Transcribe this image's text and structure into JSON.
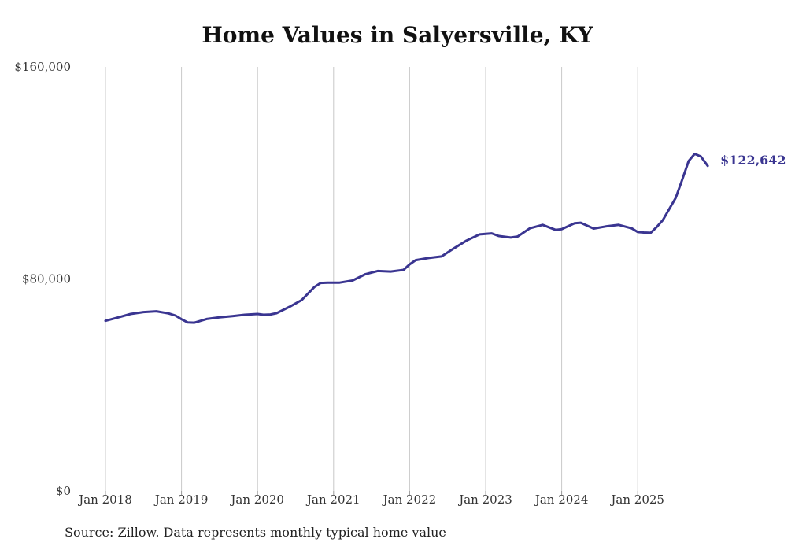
{
  "chart_data": {
    "type": "line",
    "title": "Home Values in Salyersville, KY",
    "xlabel": "",
    "ylabel": "",
    "ylim": [
      0,
      160000
    ],
    "y_ticks": [
      {
        "value": 0,
        "label": "$0"
      },
      {
        "value": 80000,
        "label": "$80,000"
      },
      {
        "value": 160000,
        "label": "$160,000"
      }
    ],
    "x_ticks": [
      {
        "value": 2018,
        "label": "Jan 2018"
      },
      {
        "value": 2019,
        "label": "Jan 2019"
      },
      {
        "value": 2020,
        "label": "Jan 2020"
      },
      {
        "value": 2021,
        "label": "Jan 2021"
      },
      {
        "value": 2022,
        "label": "Jan 2022"
      },
      {
        "value": 2023,
        "label": "Jan 2023"
      },
      {
        "value": 2024,
        "label": "Jan 2024"
      },
      {
        "value": 2025,
        "label": "Jan 2025"
      }
    ],
    "xlim": [
      2017.92,
      2025.92
    ],
    "grid": "vertical",
    "series": [
      {
        "name": "Typical home value",
        "color": "#3a3591",
        "points": [
          [
            2018.0,
            64200
          ],
          [
            2018.17,
            65500
          ],
          [
            2018.33,
            66800
          ],
          [
            2018.5,
            67500
          ],
          [
            2018.67,
            67800
          ],
          [
            2018.83,
            67000
          ],
          [
            2018.92,
            66200
          ],
          [
            2019.0,
            64800
          ],
          [
            2019.08,
            63600
          ],
          [
            2019.17,
            63500
          ],
          [
            2019.33,
            64900
          ],
          [
            2019.5,
            65500
          ],
          [
            2019.67,
            66000
          ],
          [
            2019.83,
            66500
          ],
          [
            2020.0,
            66800
          ],
          [
            2020.08,
            66500
          ],
          [
            2020.17,
            66600
          ],
          [
            2020.25,
            67100
          ],
          [
            2020.42,
            69500
          ],
          [
            2020.58,
            72000
          ],
          [
            2020.75,
            77000
          ],
          [
            2020.83,
            78500
          ],
          [
            2020.92,
            78600
          ],
          [
            2021.08,
            78600
          ],
          [
            2021.25,
            79400
          ],
          [
            2021.42,
            81800
          ],
          [
            2021.58,
            83000
          ],
          [
            2021.75,
            82800
          ],
          [
            2021.92,
            83400
          ],
          [
            2022.0,
            85500
          ],
          [
            2022.08,
            87100
          ],
          [
            2022.25,
            87900
          ],
          [
            2022.42,
            88500
          ],
          [
            2022.58,
            91500
          ],
          [
            2022.75,
            94500
          ],
          [
            2022.92,
            96800
          ],
          [
            2023.08,
            97200
          ],
          [
            2023.17,
            96200
          ],
          [
            2023.33,
            95600
          ],
          [
            2023.42,
            96000
          ],
          [
            2023.58,
            99100
          ],
          [
            2023.75,
            100400
          ],
          [
            2023.92,
            98500
          ],
          [
            2024.0,
            98800
          ],
          [
            2024.17,
            101000
          ],
          [
            2024.25,
            101200
          ],
          [
            2024.42,
            99000
          ],
          [
            2024.58,
            99800
          ],
          [
            2024.75,
            100400
          ],
          [
            2024.92,
            99100
          ],
          [
            2025.0,
            97700
          ],
          [
            2025.08,
            97500
          ],
          [
            2025.17,
            97400
          ],
          [
            2025.25,
            99600
          ],
          [
            2025.33,
            102200
          ],
          [
            2025.5,
            110600
          ],
          [
            2025.58,
            117000
          ],
          [
            2025.67,
            124500
          ],
          [
            2025.75,
            127200
          ],
          [
            2025.83,
            126200
          ],
          [
            2025.92,
            122642
          ]
        ],
        "end_label": "$122,642"
      }
    ]
  },
  "footer": {
    "source": "Source: Zillow. Data represents monthly typical home value"
  }
}
